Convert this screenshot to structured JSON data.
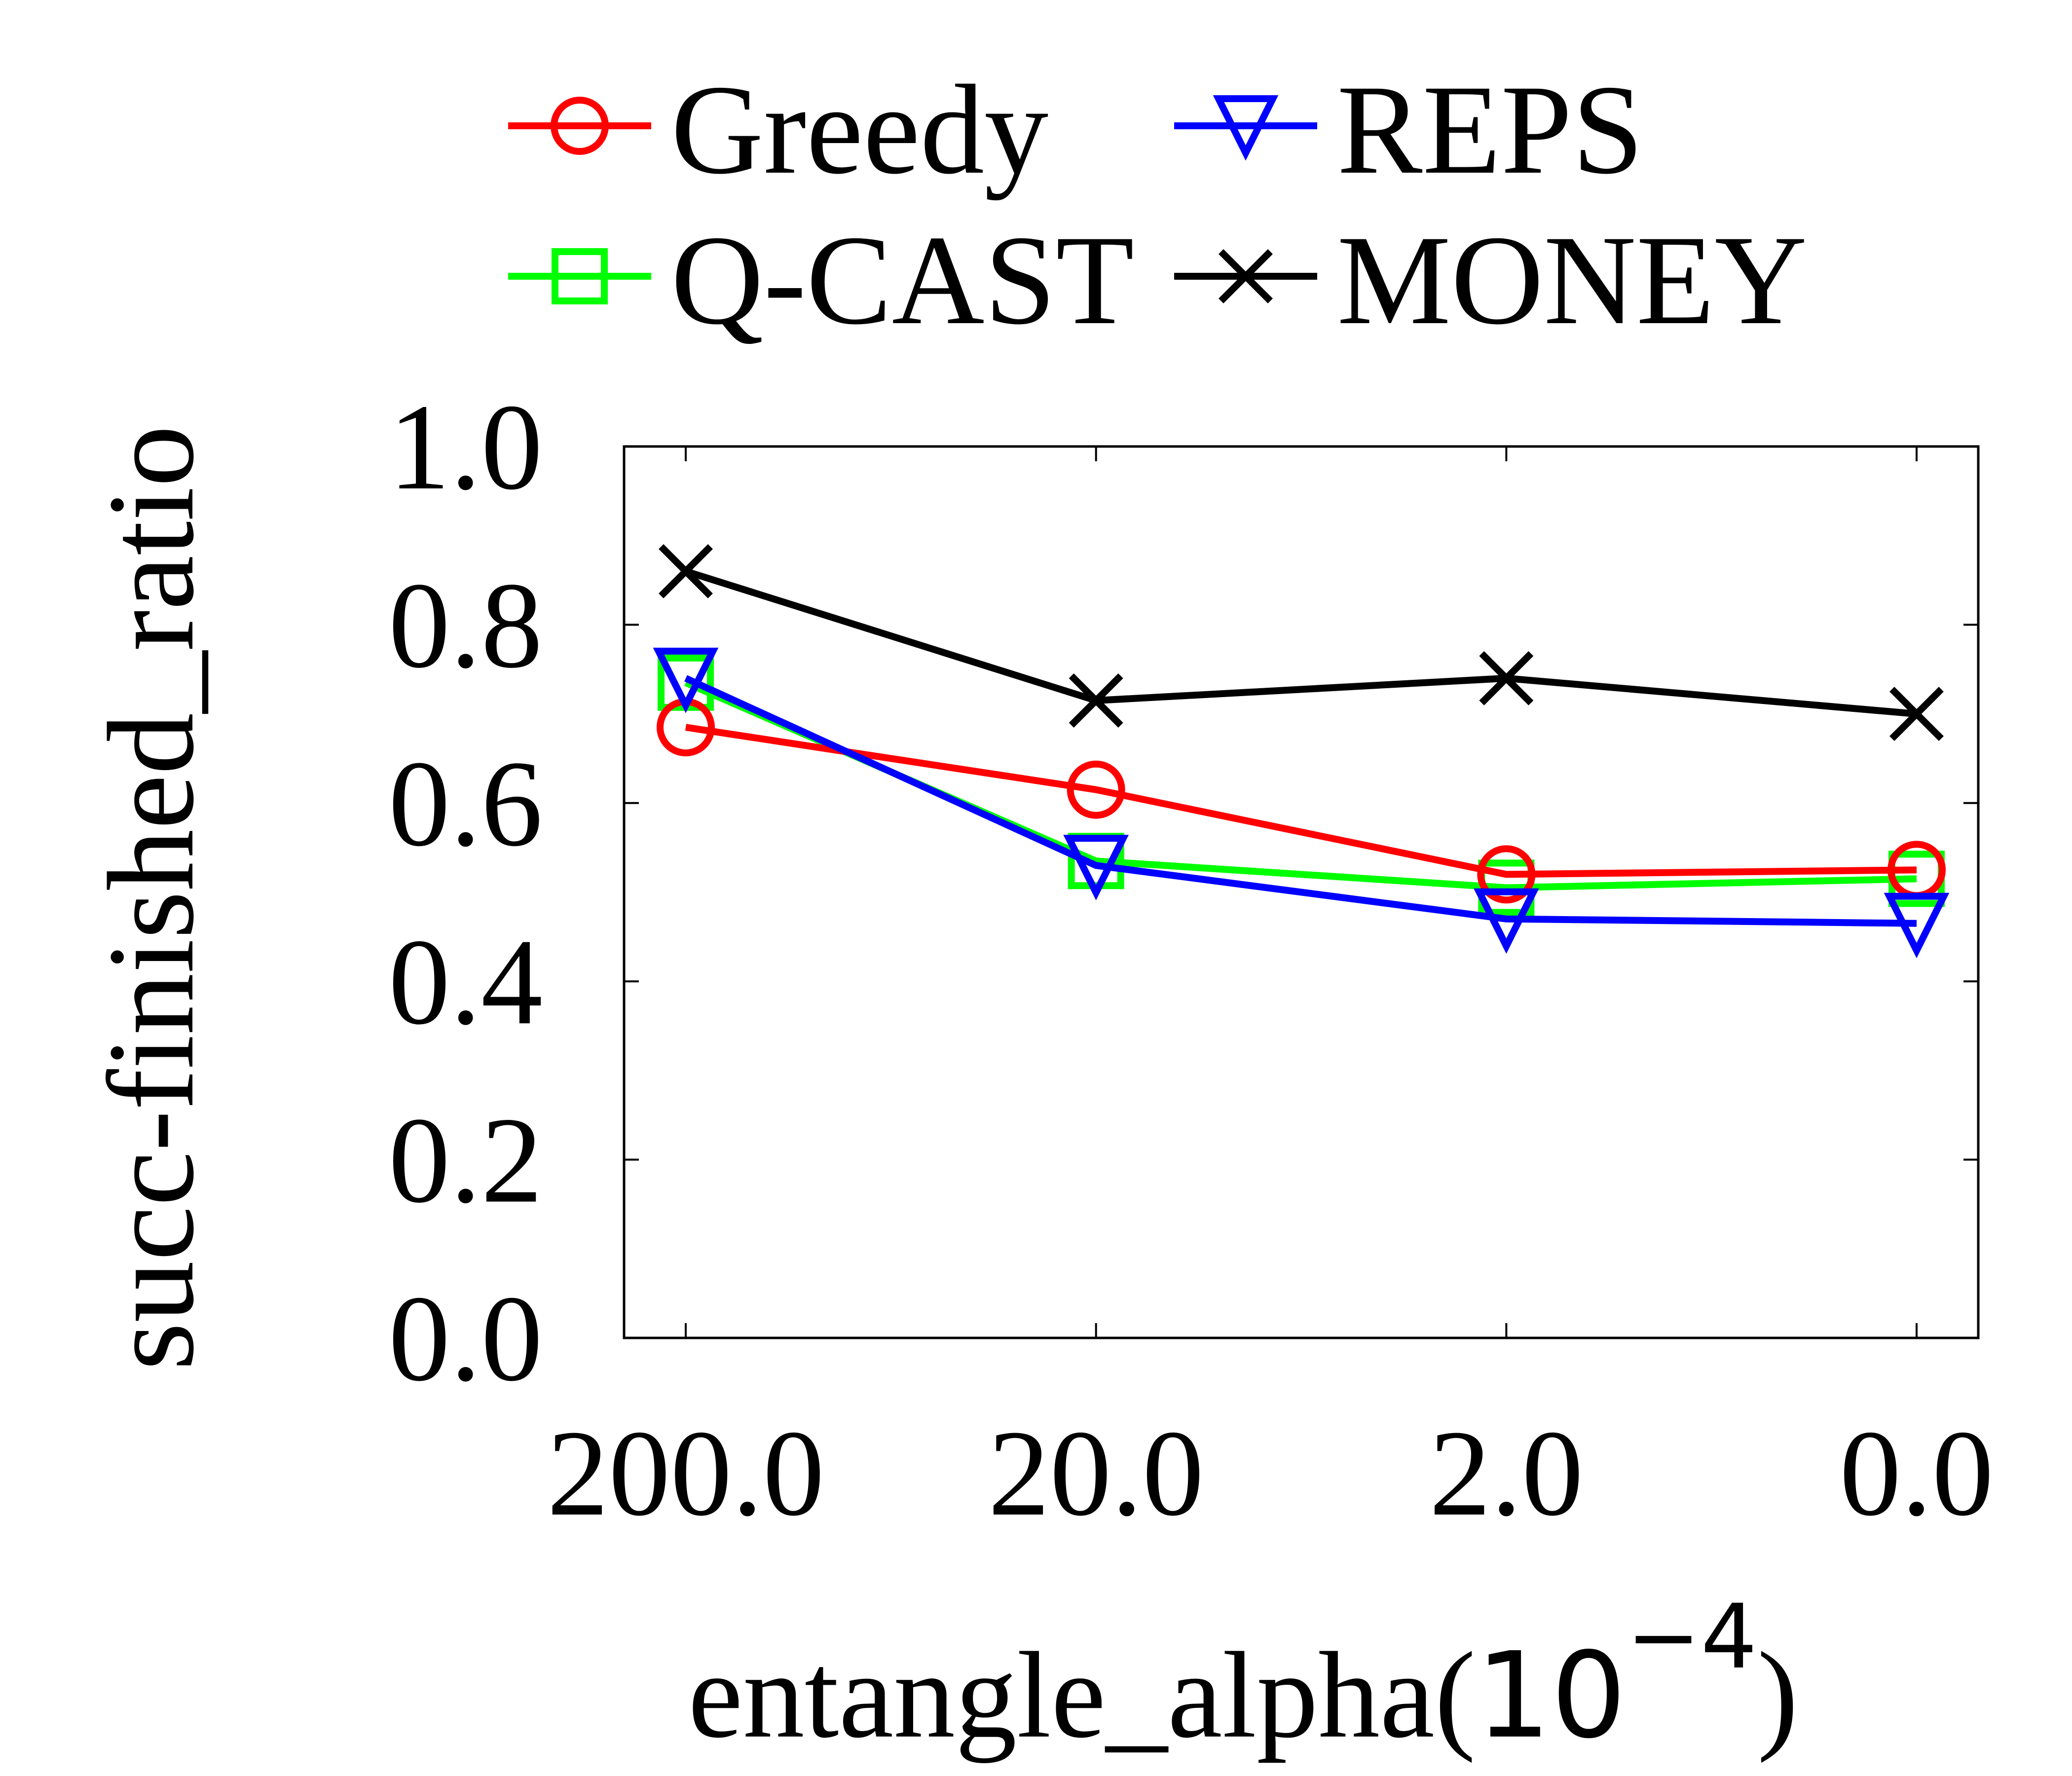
{
  "chart_data": {
    "type": "line",
    "xlabel": "entangle_alpha(",
    "xlabel_base": "10",
    "xlabel_exponent": "−4",
    "xlabel_close": ")",
    "ylabel": "succ-finished_ratio",
    "categories": [
      "200.0",
      "20.0",
      "2.0",
      "0.0"
    ],
    "yticks": [
      "0.0",
      "0.2",
      "0.4",
      "0.6",
      "0.8",
      "1.0"
    ],
    "ylim": [
      0,
      1
    ],
    "grid": false,
    "legend_position": "top",
    "series": [
      {
        "name": "Greedy",
        "color": "#ff0000",
        "marker": "circle",
        "values": [
          0.685,
          0.615,
          0.52,
          0.525
        ]
      },
      {
        "name": "REPS",
        "color": "#0000ff",
        "marker": "triangle-down",
        "values": [
          0.74,
          0.53,
          0.47,
          0.465
        ]
      },
      {
        "name": "Q-CAST",
        "color": "#00ff00",
        "marker": "square",
        "values": [
          0.735,
          0.535,
          0.505,
          0.515
        ]
      },
      {
        "name": "MONEY",
        "color": "#000000",
        "marker": "x",
        "values": [
          0.86,
          0.715,
          0.74,
          0.7
        ]
      }
    ]
  }
}
